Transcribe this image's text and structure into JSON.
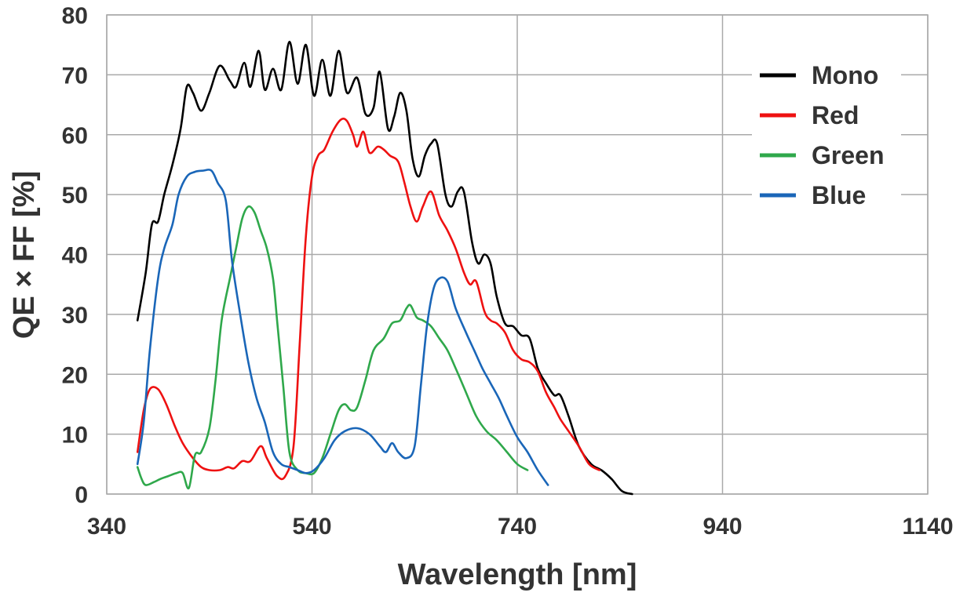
{
  "chart_data": {
    "type": "line",
    "xlabel": "Wavelength [nm]",
    "ylabel": "QE × FF [%]",
    "xlim": [
      340,
      1140
    ],
    "ylim": [
      0,
      80
    ],
    "xticks": [
      340,
      540,
      740,
      940,
      1140
    ],
    "yticks": [
      0,
      10,
      20,
      30,
      40,
      50,
      60,
      70,
      80
    ],
    "grid": true,
    "legend_position": "top-right",
    "series": [
      {
        "name": "Mono",
        "color": "#000000",
        "points": [
          [
            370,
            29
          ],
          [
            378,
            37
          ],
          [
            384,
            45
          ],
          [
            390,
            45.5
          ],
          [
            396,
            50
          ],
          [
            404,
            55
          ],
          [
            412,
            61
          ],
          [
            418,
            68
          ],
          [
            424,
            67
          ],
          [
            432,
            64
          ],
          [
            440,
            67
          ],
          [
            450,
            71.5
          ],
          [
            460,
            69
          ],
          [
            466,
            68
          ],
          [
            474,
            72
          ],
          [
            480,
            68
          ],
          [
            488,
            74
          ],
          [
            494,
            67.5
          ],
          [
            502,
            71
          ],
          [
            510,
            67.5
          ],
          [
            518,
            75.5
          ],
          [
            526,
            68.5
          ],
          [
            534,
            75
          ],
          [
            542,
            66.5
          ],
          [
            550,
            72.5
          ],
          [
            558,
            66.5
          ],
          [
            566,
            74
          ],
          [
            574,
            67
          ],
          [
            584,
            69.5
          ],
          [
            592,
            63.5
          ],
          [
            600,
            64.5
          ],
          [
            606,
            70.5
          ],
          [
            614,
            61
          ],
          [
            620,
            63
          ],
          [
            626,
            67
          ],
          [
            632,
            64
          ],
          [
            638,
            56
          ],
          [
            644,
            53
          ],
          [
            650,
            56.5
          ],
          [
            656,
            58.5
          ],
          [
            662,
            58.5
          ],
          [
            670,
            50
          ],
          [
            676,
            48
          ],
          [
            682,
            50.5
          ],
          [
            688,
            50.5
          ],
          [
            696,
            42
          ],
          [
            702,
            38.5
          ],
          [
            708,
            40
          ],
          [
            714,
            38.5
          ],
          [
            720,
            33
          ],
          [
            728,
            28.5
          ],
          [
            736,
            28
          ],
          [
            744,
            26.5
          ],
          [
            752,
            26
          ],
          [
            760,
            21
          ],
          [
            768,
            18.5
          ],
          [
            776,
            16.5
          ],
          [
            782,
            16.5
          ],
          [
            790,
            13
          ],
          [
            800,
            8
          ],
          [
            812,
            5
          ],
          [
            822,
            4
          ],
          [
            832,
            2.5
          ],
          [
            842,
            0.5
          ],
          [
            852,
            0
          ]
        ]
      },
      {
        "name": "Red",
        "color": "#ee1111",
        "points": [
          [
            370,
            7
          ],
          [
            376,
            14
          ],
          [
            382,
            17.5
          ],
          [
            390,
            17.5
          ],
          [
            398,
            15
          ],
          [
            406,
            11.5
          ],
          [
            414,
            8.5
          ],
          [
            424,
            6
          ],
          [
            432,
            4.5
          ],
          [
            440,
            4
          ],
          [
            450,
            4
          ],
          [
            458,
            4.5
          ],
          [
            464,
            4.3
          ],
          [
            472,
            5.5
          ],
          [
            480,
            5.5
          ],
          [
            490,
            8
          ],
          [
            496,
            6
          ],
          [
            506,
            3
          ],
          [
            514,
            3
          ],
          [
            522,
            8
          ],
          [
            528,
            25
          ],
          [
            534,
            43
          ],
          [
            540,
            53
          ],
          [
            546,
            56.5
          ],
          [
            552,
            57.5
          ],
          [
            560,
            60.5
          ],
          [
            568,
            62.5
          ],
          [
            574,
            62.3
          ],
          [
            580,
            60
          ],
          [
            584,
            58
          ],
          [
            590,
            60.5
          ],
          [
            596,
            57
          ],
          [
            604,
            58
          ],
          [
            610,
            57.5
          ],
          [
            616,
            56.5
          ],
          [
            624,
            55.5
          ],
          [
            630,
            52
          ],
          [
            636,
            48
          ],
          [
            642,
            45.5
          ],
          [
            648,
            48
          ],
          [
            656,
            50.5
          ],
          [
            664,
            46.5
          ],
          [
            672,
            44
          ],
          [
            680,
            41
          ],
          [
            688,
            37
          ],
          [
            694,
            35
          ],
          [
            700,
            35.5
          ],
          [
            708,
            30.5
          ],
          [
            714,
            29
          ],
          [
            720,
            28.5
          ],
          [
            728,
            27
          ],
          [
            736,
            24
          ],
          [
            744,
            22.5
          ],
          [
            752,
            22
          ],
          [
            760,
            20.5
          ],
          [
            768,
            17
          ],
          [
            776,
            14.5
          ],
          [
            782,
            12.5
          ],
          [
            790,
            10.5
          ],
          [
            800,
            8
          ],
          [
            810,
            5
          ],
          [
            820,
            4
          ]
        ]
      },
      {
        "name": "Green",
        "color": "#2fa84b",
        "points": [
          [
            370,
            4.5
          ],
          [
            374,
            2.5
          ],
          [
            378,
            1.5
          ],
          [
            386,
            2
          ],
          [
            392,
            2.5
          ],
          [
            400,
            3
          ],
          [
            408,
            3.5
          ],
          [
            414,
            3.5
          ],
          [
            420,
            1
          ],
          [
            426,
            6.5
          ],
          [
            432,
            7
          ],
          [
            440,
            11
          ],
          [
            446,
            19
          ],
          [
            452,
            29
          ],
          [
            460,
            36
          ],
          [
            466,
            41
          ],
          [
            472,
            46
          ],
          [
            478,
            48
          ],
          [
            484,
            47
          ],
          [
            490,
            44
          ],
          [
            496,
            41
          ],
          [
            502,
            36
          ],
          [
            506,
            29
          ],
          [
            512,
            18
          ],
          [
            518,
            7
          ],
          [
            526,
            4
          ],
          [
            534,
            3.5
          ],
          [
            542,
            3.5
          ],
          [
            550,
            6
          ],
          [
            558,
            10
          ],
          [
            566,
            14
          ],
          [
            572,
            15
          ],
          [
            578,
            14
          ],
          [
            584,
            14.5
          ],
          [
            592,
            19
          ],
          [
            600,
            24
          ],
          [
            610,
            26
          ],
          [
            618,
            28.5
          ],
          [
            626,
            29
          ],
          [
            632,
            31
          ],
          [
            636,
            31.5
          ],
          [
            642,
            29.5
          ],
          [
            648,
            29
          ],
          [
            656,
            28
          ],
          [
            664,
            26
          ],
          [
            672,
            24
          ],
          [
            680,
            21
          ],
          [
            690,
            17
          ],
          [
            700,
            13
          ],
          [
            710,
            10.5
          ],
          [
            720,
            9
          ],
          [
            730,
            7
          ],
          [
            740,
            5
          ],
          [
            750,
            4
          ]
        ]
      },
      {
        "name": "Blue",
        "color": "#1a66b8",
        "points": [
          [
            370,
            5
          ],
          [
            376,
            12
          ],
          [
            382,
            24
          ],
          [
            390,
            36
          ],
          [
            396,
            41
          ],
          [
            404,
            45
          ],
          [
            410,
            50
          ],
          [
            418,
            53
          ],
          [
            426,
            53.8
          ],
          [
            434,
            54
          ],
          [
            442,
            54
          ],
          [
            448,
            52
          ],
          [
            456,
            49
          ],
          [
            462,
            39
          ],
          [
            470,
            30
          ],
          [
            478,
            22
          ],
          [
            486,
            16
          ],
          [
            494,
            12
          ],
          [
            502,
            7
          ],
          [
            510,
            5
          ],
          [
            518,
            4.5
          ],
          [
            526,
            4
          ],
          [
            534,
            3.5
          ],
          [
            542,
            4
          ],
          [
            552,
            6
          ],
          [
            562,
            9
          ],
          [
            572,
            10.5
          ],
          [
            584,
            11
          ],
          [
            596,
            10
          ],
          [
            606,
            8
          ],
          [
            612,
            7
          ],
          [
            618,
            8.5
          ],
          [
            624,
            7
          ],
          [
            632,
            6
          ],
          [
            640,
            8
          ],
          [
            646,
            18
          ],
          [
            652,
            28
          ],
          [
            658,
            34
          ],
          [
            664,
            36
          ],
          [
            672,
            35.5
          ],
          [
            680,
            31
          ],
          [
            690,
            27
          ],
          [
            698,
            24
          ],
          [
            706,
            21
          ],
          [
            714,
            18.5
          ],
          [
            722,
            16
          ],
          [
            730,
            13
          ],
          [
            740,
            9.5
          ],
          [
            750,
            7
          ],
          [
            760,
            4
          ],
          [
            770,
            1.5
          ]
        ]
      }
    ]
  }
}
